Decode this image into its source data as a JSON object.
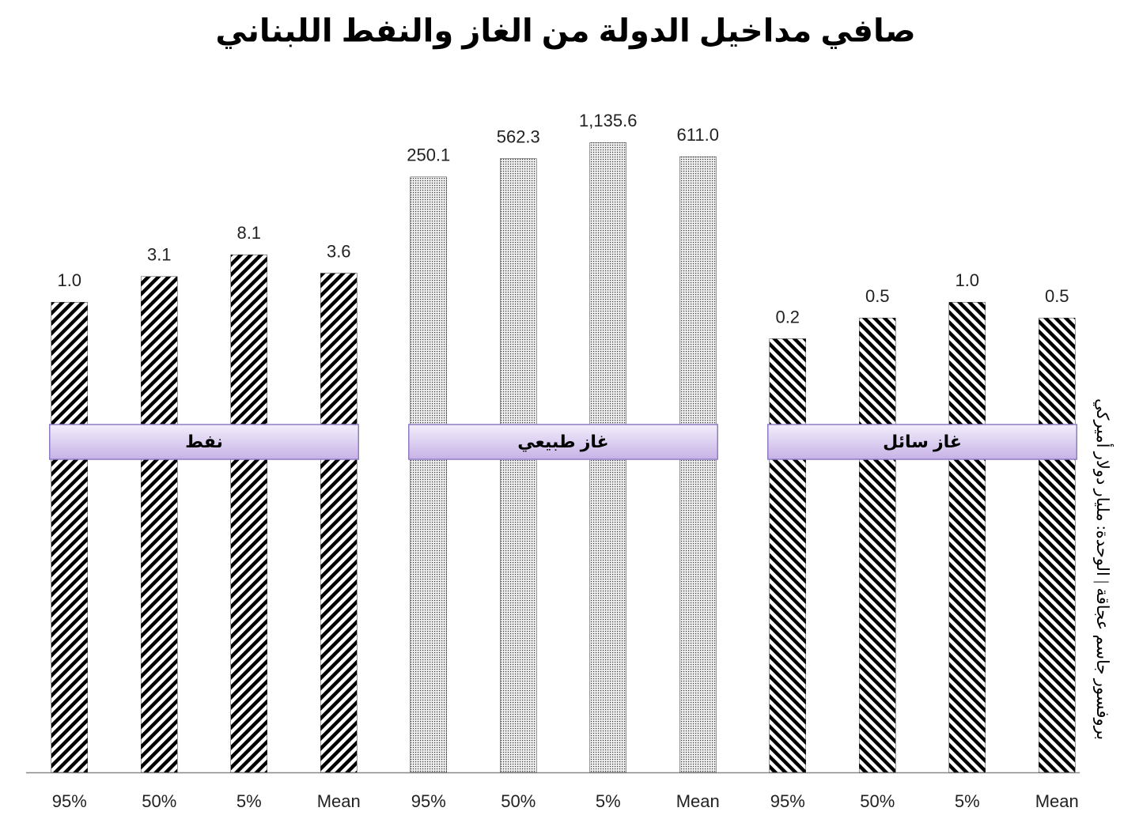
{
  "chart_data": {
    "type": "bar",
    "title": "صافي مداخيل الدولة من الغاز والنفط اللبناني",
    "y_label": "بروفسور جاسم عجاقة | الوحدة: مليار دولار أميركي",
    "log_scale": true,
    "ylim": [
      1e-09,
      10000
    ],
    "categories": [
      "95%",
      "50%",
      "5%",
      "Mean"
    ],
    "series": [
      {
        "name": "نفط",
        "values": [
          1.0,
          3.1,
          8.1,
          3.6
        ],
        "value_labels": [
          "1.0",
          "3.1",
          "8.1",
          "3.6"
        ]
      },
      {
        "name": "غاز طبيعي",
        "values": [
          250.1,
          562.3,
          1135.6,
          611.0
        ],
        "value_labels": [
          "250.1",
          "562.3",
          "1,135.6",
          "611.0"
        ]
      },
      {
        "name": "غاز سائل",
        "values": [
          0.2,
          0.5,
          1.0,
          0.5
        ],
        "value_labels": [
          "0.2",
          "0.5",
          "1.0",
          "0.5"
        ]
      }
    ]
  }
}
